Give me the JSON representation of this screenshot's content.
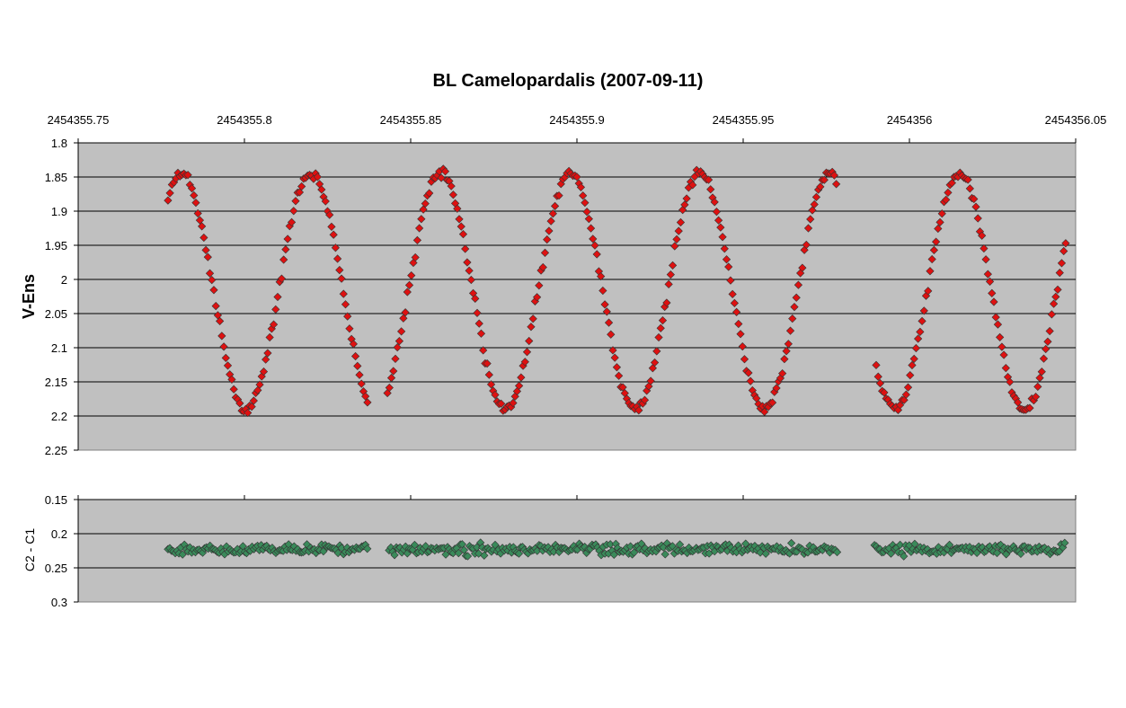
{
  "chart_data": {
    "type": "scatter",
    "title": "BL Camelopardalis (2007-09-11)",
    "x_axis": {
      "position": "top",
      "ticks": [
        2454355.75,
        2454355.8,
        2454355.85,
        2454355.9,
        2454355.95,
        2454356.0,
        2454356.05
      ],
      "tick_labels": [
        "2454355.75",
        "2454355.8",
        "2454355.85",
        "2454355.9",
        "2454355.95",
        "2454356",
        "2454356.05"
      ],
      "range": [
        2454355.75,
        2454356.05
      ]
    },
    "panels": [
      {
        "ylabel": "V-Ens",
        "ylim": [
          1.8,
          2.25
        ],
        "y_inverted": true,
        "yticks": [
          1.8,
          1.85,
          1.9,
          1.95,
          2.0,
          2.05,
          2.1,
          2.15,
          2.2,
          2.25
        ],
        "ytick_labels": [
          "1.8",
          "1.85",
          "1.9",
          "1.95",
          "2",
          "2.05",
          "2.1",
          "2.15",
          "2.2",
          "2.25"
        ],
        "grid": true,
        "marker_color": "#dd1111",
        "marker": "diamond",
        "model": {
          "phase0": 2454355.8005,
          "period": 0.039,
          "min_mag": 2.19,
          "max_mag": 1.845,
          "x_start": 2454355.777,
          "x_end": 2454356.047,
          "gaps": [
            [
              2454355.837,
              2454355.8425
            ],
            [
              2454355.9785,
              2454355.9895
            ]
          ]
        }
      },
      {
        "ylabel": "C2 - C1",
        "ylim": [
          0.15,
          0.3
        ],
        "y_inverted": true,
        "yticks": [
          0.15,
          0.2,
          0.25,
          0.3
        ],
        "ytick_labels": [
          "0.15",
          "0.2",
          "0.25",
          "0.3"
        ],
        "grid": true,
        "marker_color": "#3a8a5a",
        "marker": "diamond",
        "model": {
          "mean": 0.223,
          "scatter": 0.012,
          "segments": [
            [
              2454355.777,
              2454355.837
            ],
            [
              2454355.8435,
              2454355.9785
            ],
            [
              2454355.9895,
              2454356.047
            ]
          ]
        }
      }
    ]
  }
}
